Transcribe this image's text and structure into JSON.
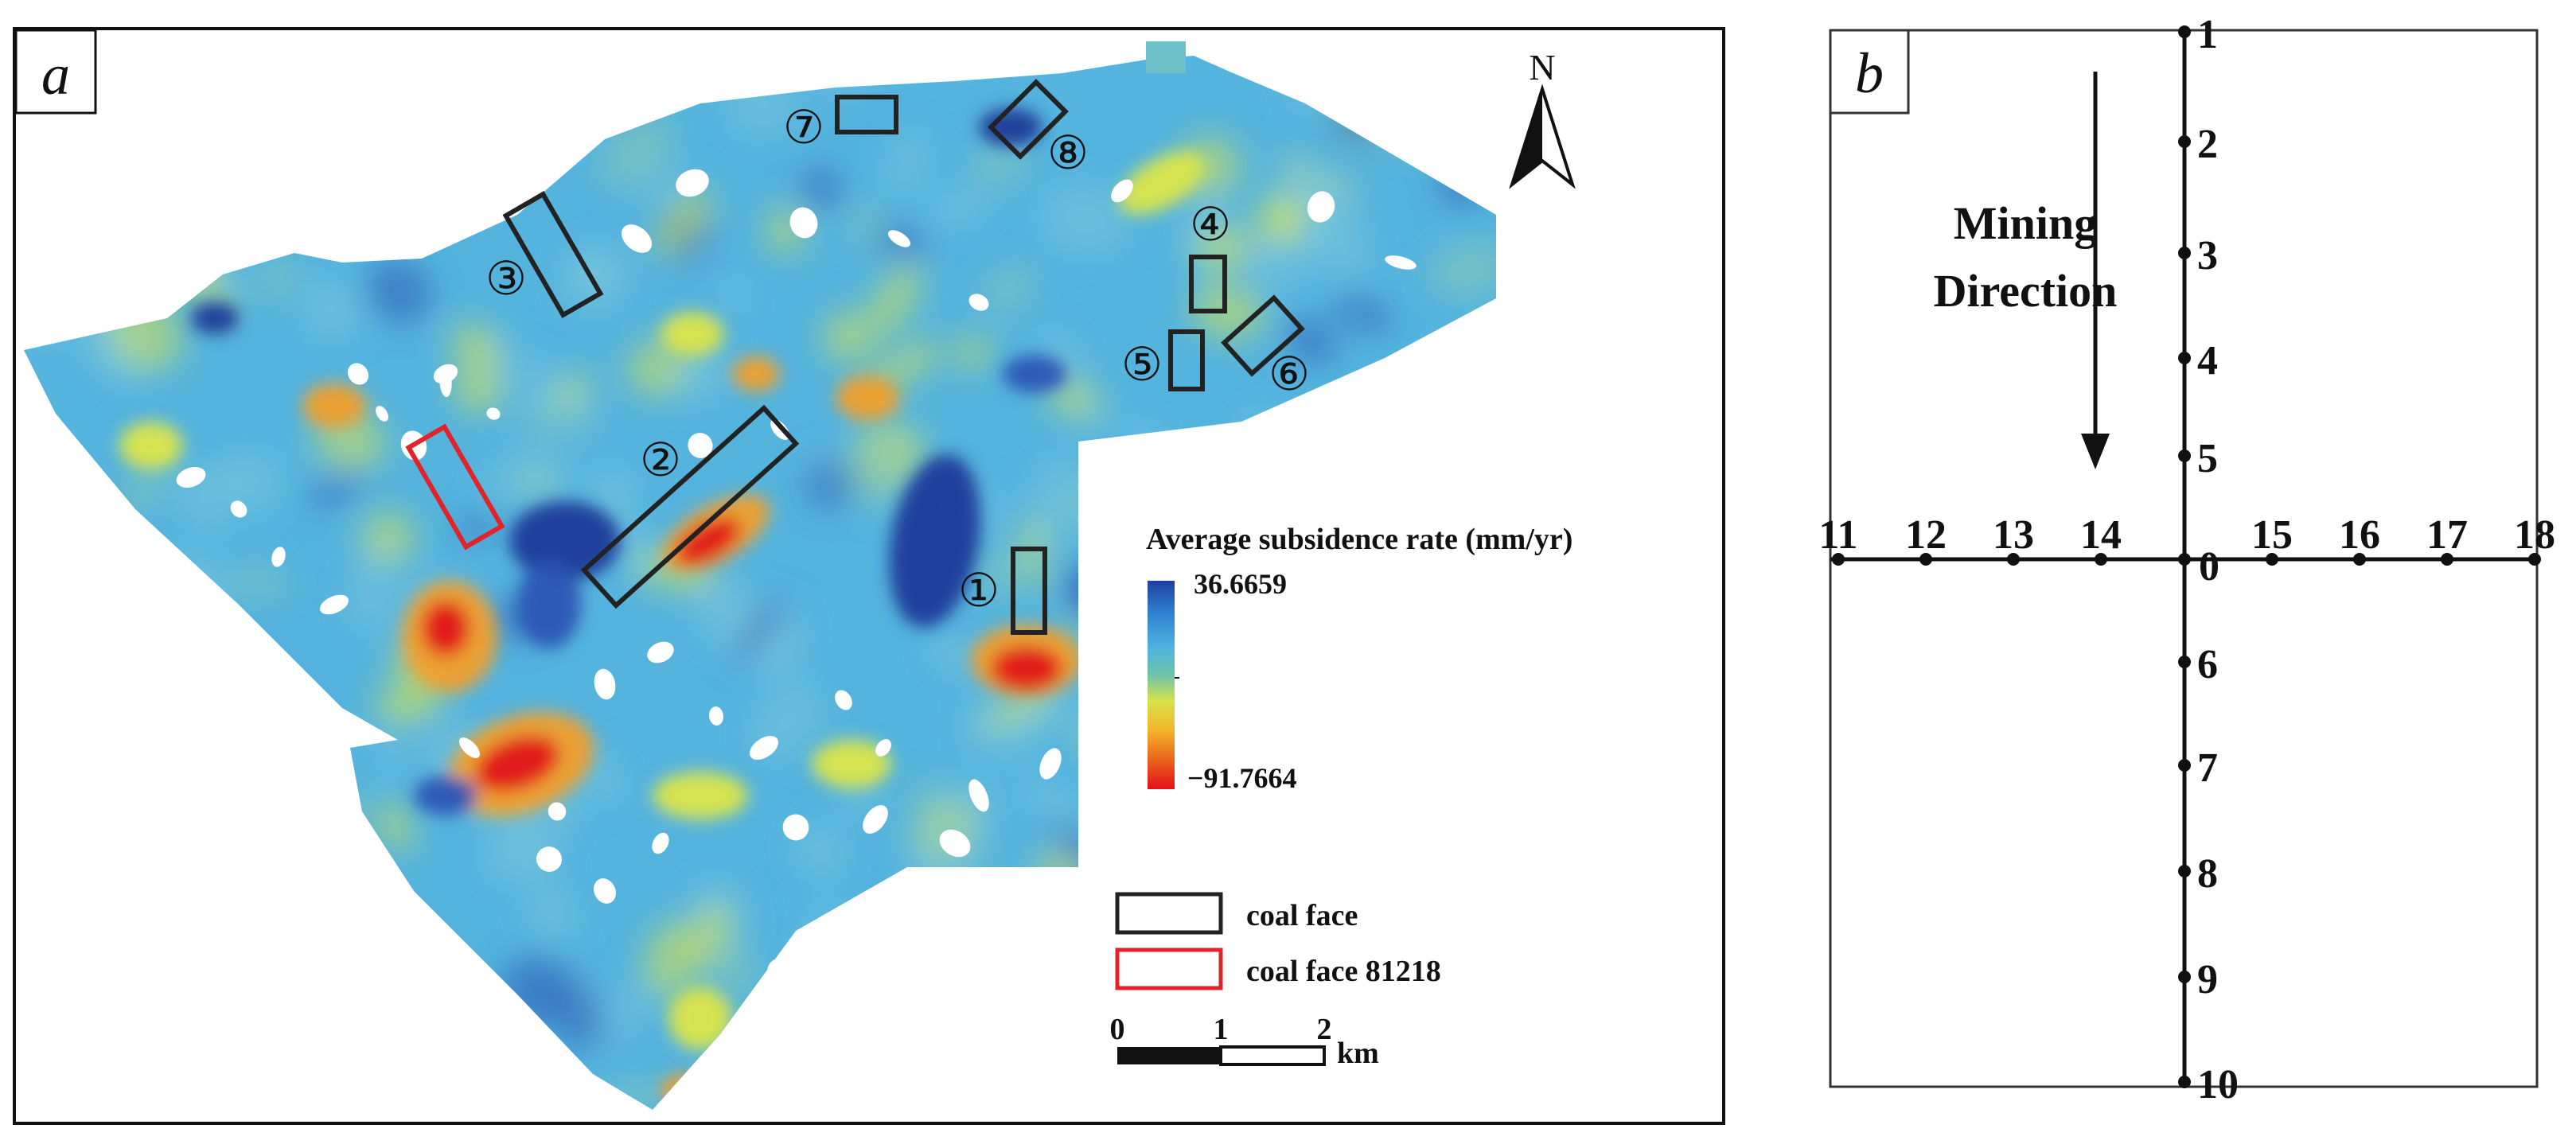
{
  "panel_a": {
    "label": "a",
    "north_label": "N",
    "legend_title": "Average subsidence rate (mm/yr)",
    "legend_max": "36.6659",
    "legend_min": "−91.7664",
    "colorbar_colors": [
      "#1f3fa0",
      "#2e7fd0",
      "#4fb3e0",
      "#6cc3a8",
      "#d9e34a",
      "#f2b32a",
      "#e8641c",
      "#e3101a"
    ],
    "key": [
      {
        "label": "coal face",
        "color": "#222222"
      },
      {
        "label": "coal face 81218",
        "color": "#e0242a"
      }
    ],
    "scale_ticks": [
      "0",
      "1",
      "2"
    ],
    "scale_unit": "km",
    "faces": [
      {
        "id": "1",
        "label": "①"
      },
      {
        "id": "2",
        "label": "②"
      },
      {
        "id": "3",
        "label": "③"
      },
      {
        "id": "4",
        "label": "④"
      },
      {
        "id": "5",
        "label": "⑤"
      },
      {
        "id": "6",
        "label": "⑥"
      },
      {
        "id": "7",
        "label": "⑦"
      },
      {
        "id": "8",
        "label": "⑧"
      }
    ],
    "map_colors": {
      "base": "#4fb3e0",
      "light": "#7cc6dd",
      "green": "#8ccab0",
      "yellow": "#dde64a",
      "orange": "#f2a02a",
      "red": "#e0141c",
      "blue": "#2a55b4",
      "dark_blue": "#1c3a98"
    }
  },
  "panel_b": {
    "label": "b",
    "mining_direction": [
      "Mining",
      "Direction"
    ],
    "vertical_points": [
      "1",
      "2",
      "3",
      "4",
      "5",
      "0",
      "6",
      "7",
      "8",
      "9",
      "10"
    ],
    "horizontal_points": [
      "11",
      "12",
      "13",
      "14",
      "0",
      "15",
      "16",
      "17",
      "18"
    ]
  }
}
